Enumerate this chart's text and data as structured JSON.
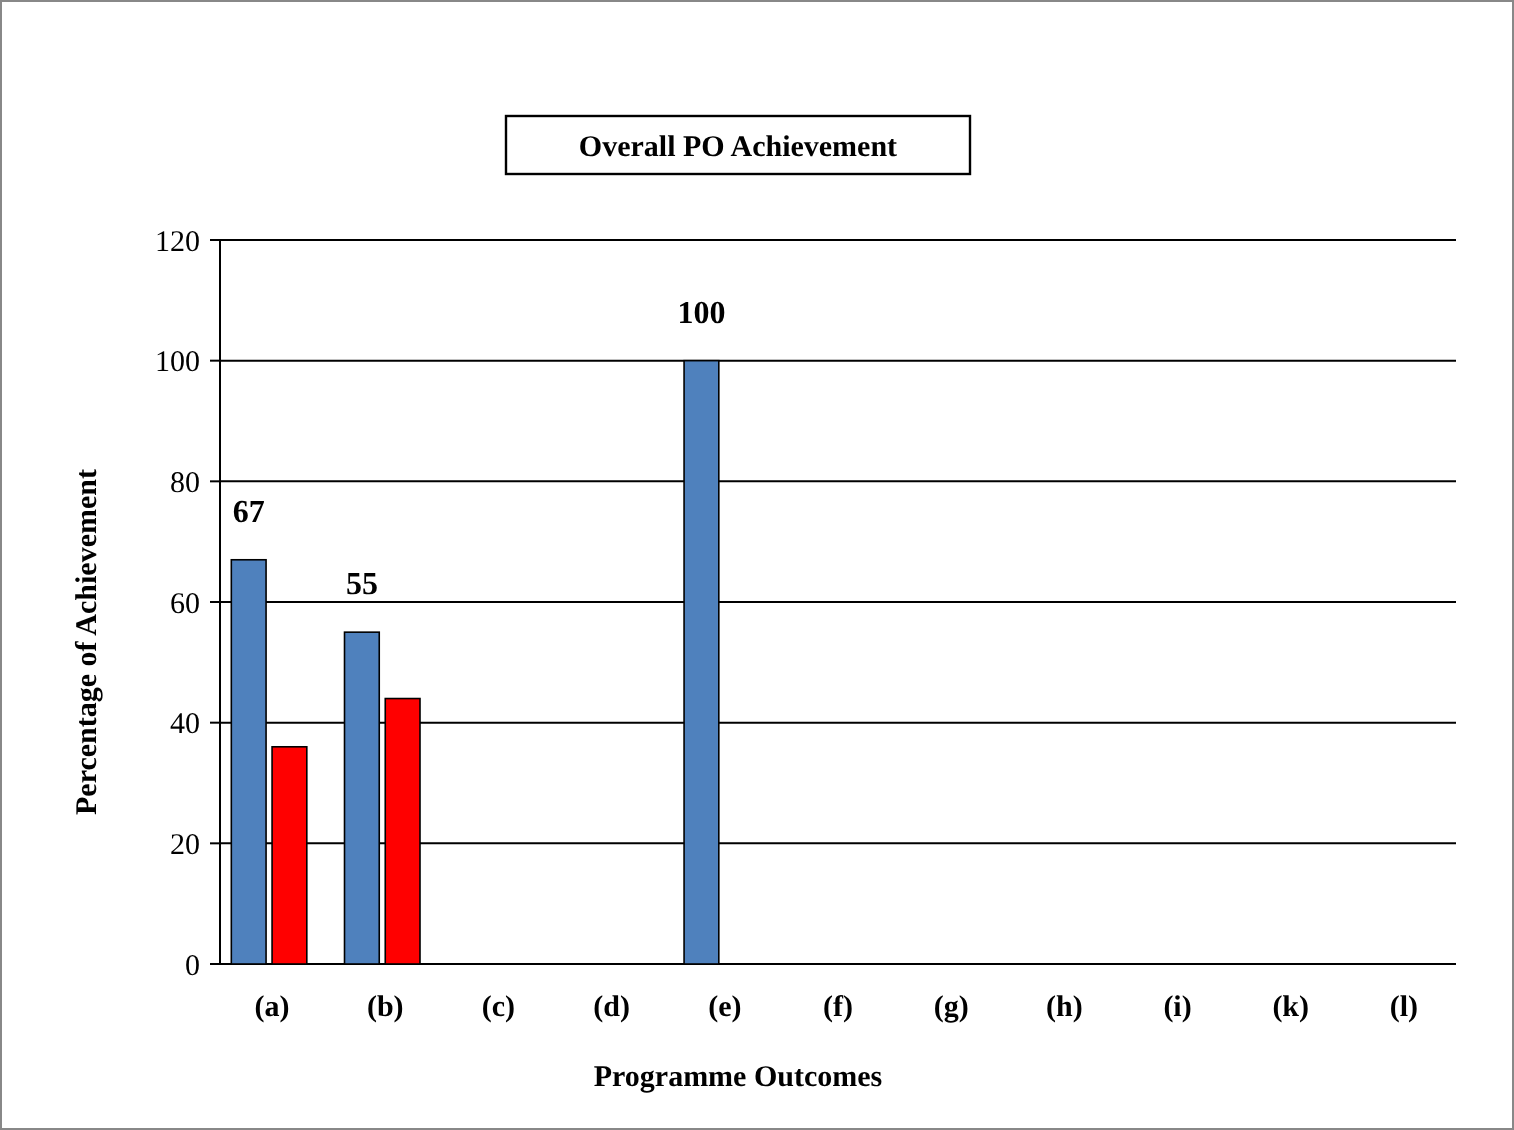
{
  "chart_data": {
    "type": "bar",
    "title": "Overall PO Achievement",
    "xlabel": "Programme Outcomes",
    "ylabel": "Percentage of Achievement",
    "categories": [
      "(a)",
      "(b)",
      "(c)",
      "(d)",
      "(e)",
      "(f)",
      "(g)",
      "(h)",
      "(i)",
      "(k)",
      "(l)"
    ],
    "series": [
      {
        "color": "#4f81bd",
        "values": [
          67,
          55,
          null,
          null,
          100,
          null,
          null,
          null,
          null,
          null,
          null
        ],
        "value_labels": [
          "67",
          "55",
          null,
          null,
          "100",
          null,
          null,
          null,
          null,
          null,
          null
        ]
      },
      {
        "color": "#ff0000",
        "values": [
          36,
          44,
          null,
          null,
          null,
          null,
          null,
          null,
          null,
          null,
          null
        ]
      }
    ],
    "ylim": [
      0,
      120
    ],
    "yticks": [
      0,
      20,
      40,
      60,
      80,
      100,
      120
    ],
    "grid": "y"
  }
}
